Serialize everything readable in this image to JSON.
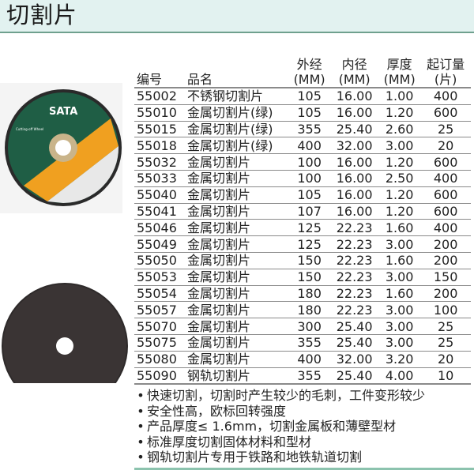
{
  "header": {
    "title": "切割片"
  },
  "table": {
    "headers": [
      [
        "编号"
      ],
      [
        "品名"
      ],
      [
        "外经",
        "(MM)"
      ],
      [
        "内径",
        "(MM)"
      ],
      [
        "厚度",
        "(MM)"
      ],
      [
        "起订量",
        "(片)"
      ]
    ],
    "rows": [
      [
        "55002",
        "不锈钢切割片",
        "105",
        "16.00",
        "1.00",
        "400"
      ],
      [
        "55010",
        "金属切割片(绿)",
        "105",
        "16.00",
        "1.20",
        "600"
      ],
      [
        "55015",
        "金属切割片(绿)",
        "355",
        "25.40",
        "2.60",
        "25"
      ],
      [
        "55018",
        "金属切割片(绿)",
        "400",
        "32.00",
        "3.00",
        "20"
      ],
      [
        "55032",
        "金属切割片",
        "100",
        "16.00",
        "1.20",
        "600"
      ],
      [
        "55033",
        "金属切割片",
        "100",
        "16.00",
        "2.50",
        "400"
      ],
      [
        "55040",
        "金属切割片",
        "105",
        "16.00",
        "1.20",
        "600"
      ],
      [
        "55041",
        "金属切割片",
        "107",
        "16.00",
        "1.20",
        "600"
      ],
      [
        "55046",
        "金属切割片",
        "125",
        "22.23",
        "1.60",
        "400"
      ],
      [
        "55049",
        "金属切割片",
        "125",
        "22.23",
        "3.00",
        "200"
      ],
      [
        "55050",
        "金属切割片",
        "150",
        "22.23",
        "1.60",
        "200"
      ],
      [
        "55053",
        "金属切割片",
        "150",
        "22.23",
        "3.00",
        "150"
      ],
      [
        "55054",
        "金属切割片",
        "180",
        "22.23",
        "1.60",
        "200"
      ],
      [
        "55057",
        "金属切割片",
        "180",
        "22.23",
        "3.00",
        "100"
      ],
      [
        "55070",
        "金属切割片",
        "300",
        "25.40",
        "3.00",
        "25"
      ],
      [
        "55075",
        "金属切割片",
        "355",
        "25.40",
        "3.00",
        "25"
      ],
      [
        "55080",
        "金属切割片",
        "400",
        "32.00",
        "3.20",
        "20"
      ],
      [
        "55090",
        "钢轨切割片",
        "355",
        "25.40",
        "4.00",
        "10"
      ]
    ]
  },
  "features": [
    "快速切割，切割时产生较少的毛刺，工件变形较少",
    "安全性高，欧标回转强度",
    "产品厚度≤ 1.6mm，切割金属板和薄壁型材",
    "标准厚度切割固体材料和型材",
    "钢轨切割片专用于铁路和地铁轨道切割"
  ],
  "product_image": {
    "brand": "SATA",
    "label": "Cutting-off Wheel"
  },
  "colors": {
    "header_bg": "#e2f2f0",
    "accent": "#6fa08e",
    "disc_green": "#1f5e45",
    "disc_orange": "#f0a020",
    "disc_dark": "#2e2a2a"
  }
}
